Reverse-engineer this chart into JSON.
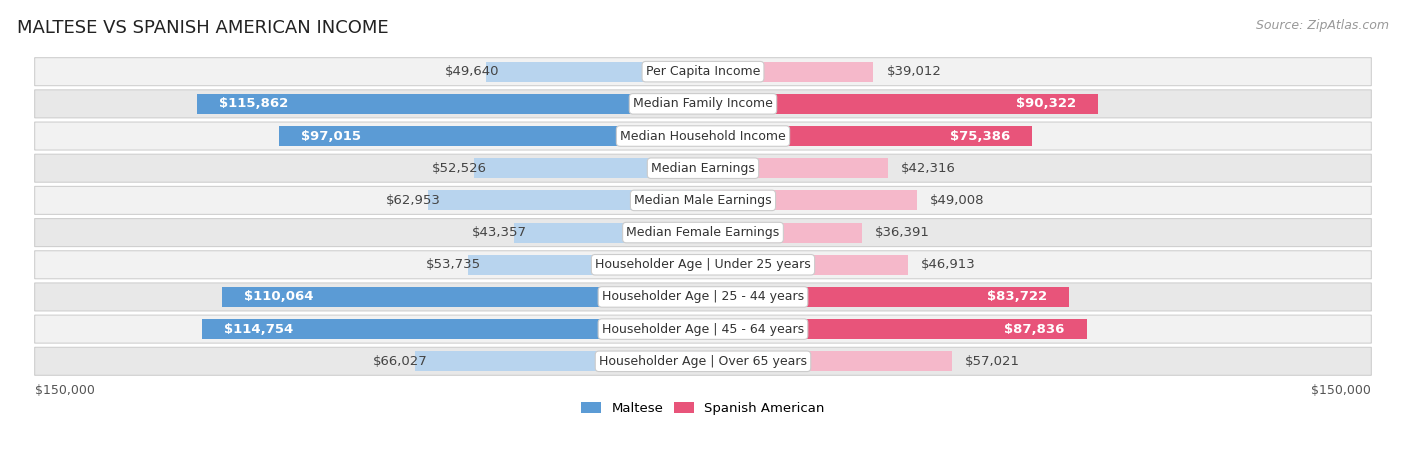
{
  "title": "MALTESE VS SPANISH AMERICAN INCOME",
  "source": "Source: ZipAtlas.com",
  "categories": [
    "Per Capita Income",
    "Median Family Income",
    "Median Household Income",
    "Median Earnings",
    "Median Male Earnings",
    "Median Female Earnings",
    "Householder Age | Under 25 years",
    "Householder Age | 25 - 44 years",
    "Householder Age | 45 - 64 years",
    "Householder Age | Over 65 years"
  ],
  "maltese_values": [
    49640,
    115862,
    97015,
    52526,
    62953,
    43357,
    53735,
    110064,
    114754,
    66027
  ],
  "spanish_values": [
    39012,
    90322,
    75386,
    42316,
    49008,
    36391,
    46913,
    83722,
    87836,
    57021
  ],
  "max_value": 150000,
  "maltese_color_light": "#b8d4ee",
  "maltese_color_dark": "#5b9bd5",
  "spanish_color_light": "#f5b8ca",
  "spanish_color_dark": "#e8547a",
  "label_color_dark": "#444444",
  "label_color_white": "#ffffff",
  "background_color": "#ffffff",
  "row_odd_color": "#f2f2f2",
  "row_even_color": "#e8e8e8",
  "axis_label_left": "$150,000",
  "axis_label_right": "$150,000",
  "legend_maltese": "Maltese",
  "legend_spanish": "Spanish American",
  "title_fontsize": 13,
  "source_fontsize": 9,
  "bar_label_fontsize": 9.5,
  "category_fontsize": 9,
  "axis_fontsize": 9,
  "white_label_threshold": 70000,
  "pink_white_label_threshold": 60000
}
